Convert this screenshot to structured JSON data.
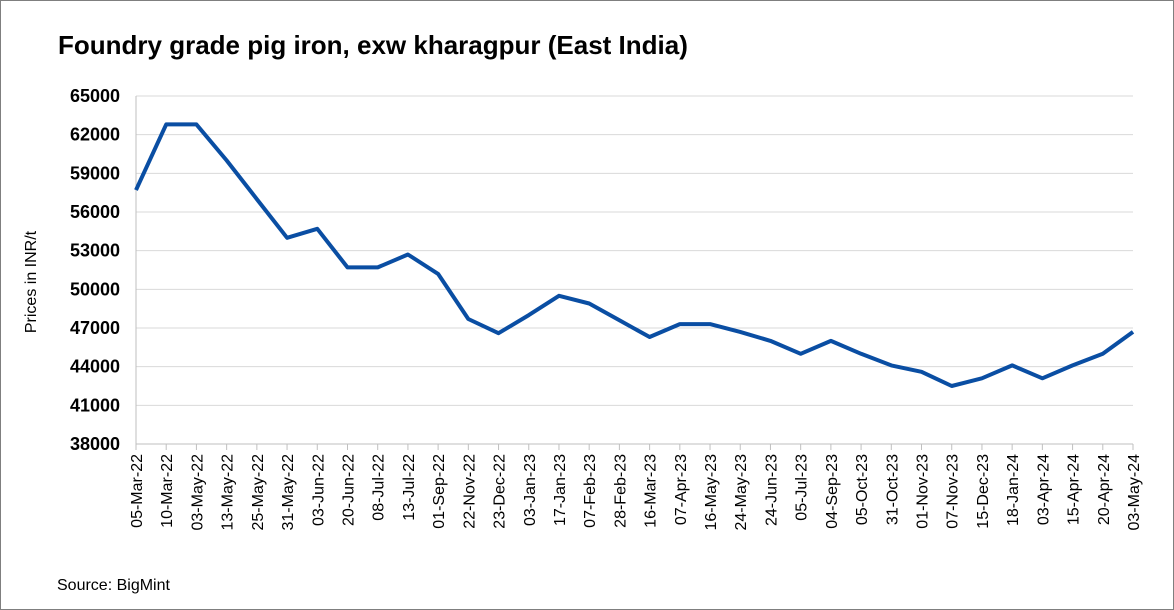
{
  "chart_data": {
    "type": "line",
    "title": "Foundry grade pig iron, exw kharagpur (East India)",
    "xlabel": "",
    "ylabel": "Prices in INR/t",
    "source": "Source: BigMint",
    "ylim": [
      38000,
      65000
    ],
    "yticks": [
      38000,
      41000,
      44000,
      47000,
      50000,
      53000,
      56000,
      59000,
      62000,
      65000
    ],
    "grid": true,
    "legend": "none",
    "categories": [
      "05-Mar-22",
      "10-Mar-22",
      "03-May-22",
      "13-May-22",
      "25-May-22",
      "31-May-22",
      "03-Jun-22",
      "20-Jun-22",
      "08-Jul-22",
      "13-Jul-22",
      "01-Sep-22",
      "22-Nov-22",
      "23-Dec-22",
      "03-Jan-23",
      "17-Jan-23",
      "07-Feb-23",
      "28-Feb-23",
      "16-Mar-23",
      "07-Apr-23",
      "16-May-23",
      "24-May-23",
      "24-Jun-23",
      "05-Jul-23",
      "04-Sep-23",
      "05-Oct-23",
      "31-Oct-23",
      "01-Nov-23",
      "07-Nov-23",
      "15-Dec-23",
      "18-Jan-24",
      "03-Apr-24",
      "15-Apr-24",
      "20-Apr-24",
      "03-May-24"
    ],
    "series": [
      {
        "color": "#0a4ea3",
        "values": [
          57700,
          62800,
          62800,
          60000,
          57000,
          54000,
          54700,
          51700,
          51700,
          52700,
          51200,
          47700,
          46600,
          48000,
          49500,
          48900,
          47600,
          46300,
          47300,
          47300,
          46700,
          46000,
          45000,
          46000,
          45000,
          44100,
          43600,
          42500,
          43100,
          44100,
          43100,
          44100,
          45000,
          46700
        ]
      }
    ]
  }
}
